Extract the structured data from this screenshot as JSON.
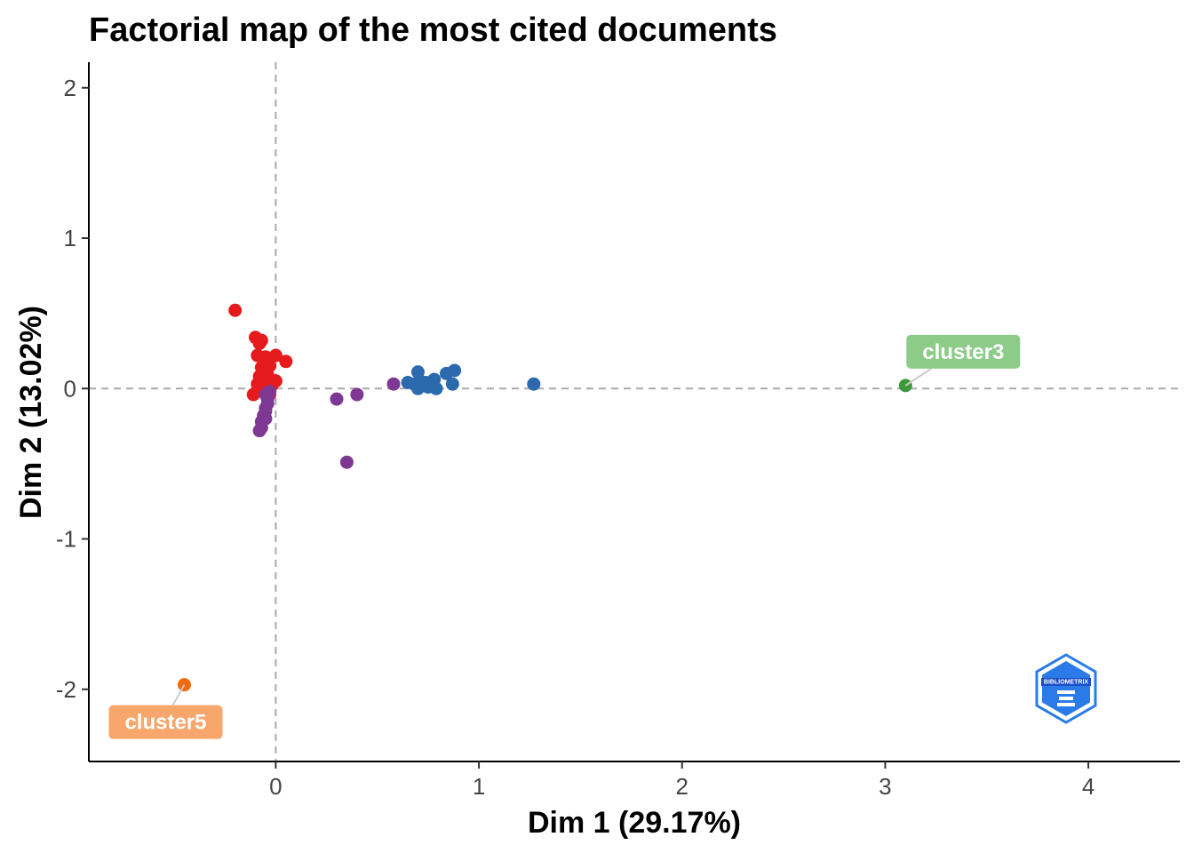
{
  "chart_data": {
    "type": "scatter",
    "title": "Factorial map of the most cited documents",
    "xlabel": "Dim 1 (29.17%)",
    "ylabel": "Dim 2 (13.02%)",
    "xlim": [
      -0.92,
      4.45
    ],
    "ylim": [
      -2.48,
      2.17
    ],
    "x_ticks": [
      0,
      1,
      2,
      3,
      4
    ],
    "x_tick_labels": [
      "0",
      "1",
      "2",
      "3",
      "4"
    ],
    "y_ticks": [
      2,
      1,
      0,
      -1,
      -2
    ],
    "y_tick_labels": [
      "2",
      "1",
      "0",
      "-1",
      "-2"
    ],
    "reference_lines": {
      "x": 0,
      "y": 0,
      "style": "dashed",
      "color": "#aaaaaa"
    },
    "grid": false,
    "series": [
      {
        "color": "#e41a1c",
        "points": [
          {
            "x": -0.2,
            "y": 0.52
          },
          {
            "x": -0.1,
            "y": 0.34
          },
          {
            "x": -0.08,
            "y": 0.3
          },
          {
            "x": -0.07,
            "y": 0.32
          },
          {
            "x": -0.09,
            "y": 0.22
          },
          {
            "x": -0.05,
            "y": 0.21
          },
          {
            "x": -0.07,
            "y": 0.14
          },
          {
            "x": -0.05,
            "y": 0.16
          },
          {
            "x": -0.03,
            "y": 0.15
          },
          {
            "x": 0.0,
            "y": 0.22
          },
          {
            "x": 0.05,
            "y": 0.18
          },
          {
            "x": -0.08,
            "y": 0.08
          },
          {
            "x": -0.06,
            "y": 0.1
          },
          {
            "x": -0.04,
            "y": 0.09
          },
          {
            "x": -0.09,
            "y": 0.03
          },
          {
            "x": -0.06,
            "y": 0.04
          },
          {
            "x": -0.04,
            "y": 0.03
          },
          {
            "x": -0.02,
            "y": 0.02
          },
          {
            "x": 0.0,
            "y": 0.05
          },
          {
            "x": -0.11,
            "y": -0.04
          },
          {
            "x": -0.06,
            "y": -0.02
          },
          {
            "x": -0.03,
            "y": -0.04
          },
          {
            "x": -0.05,
            "y": 0.0
          }
        ]
      },
      {
        "color": "#7e3894",
        "points": [
          {
            "x": -0.08,
            "y": -0.28
          },
          {
            "x": -0.07,
            "y": -0.26
          },
          {
            "x": -0.07,
            "y": -0.22
          },
          {
            "x": -0.06,
            "y": -0.18
          },
          {
            "x": -0.05,
            "y": -0.2
          },
          {
            "x": -0.05,
            "y": -0.15
          },
          {
            "x": -0.05,
            "y": -0.13
          },
          {
            "x": -0.04,
            "y": -0.1
          },
          {
            "x": -0.04,
            "y": -0.07
          },
          {
            "x": -0.05,
            "y": -0.04
          },
          {
            "x": -0.03,
            "y": -0.02
          },
          {
            "x": 0.3,
            "y": -0.07
          },
          {
            "x": 0.4,
            "y": -0.04
          },
          {
            "x": 0.58,
            "y": 0.03
          },
          {
            "x": 0.35,
            "y": -0.49
          }
        ]
      },
      {
        "color": "#2b6aad",
        "points": [
          {
            "x": 0.65,
            "y": 0.04
          },
          {
            "x": 0.68,
            "y": 0.03
          },
          {
            "x": 0.7,
            "y": 0.11
          },
          {
            "x": 0.71,
            "y": 0.05
          },
          {
            "x": 0.7,
            "y": 0.0
          },
          {
            "x": 0.72,
            "y": 0.03
          },
          {
            "x": 0.74,
            "y": 0.04
          },
          {
            "x": 0.75,
            "y": 0.01
          },
          {
            "x": 0.77,
            "y": 0.04
          },
          {
            "x": 0.78,
            "y": 0.06
          },
          {
            "x": 0.79,
            "y": 0.0
          },
          {
            "x": 0.84,
            "y": 0.1
          },
          {
            "x": 0.87,
            "y": 0.03
          },
          {
            "x": 0.88,
            "y": 0.12
          },
          {
            "x": 1.27,
            "y": 0.03
          }
        ]
      },
      {
        "name": "cluster3",
        "color": "#3a9a3a",
        "label_bg": "#8ccb88",
        "points": [
          {
            "x": 3.1,
            "y": 0.02
          }
        ]
      },
      {
        "name": "cluster5",
        "color": "#f06a0a",
        "label_bg": "#f8a66b",
        "points": [
          {
            "x": -0.45,
            "y": -1.97
          }
        ]
      }
    ]
  },
  "logo": {
    "icon": "bibliometrix-logo-icon",
    "text": "BIBLIOMETRIX",
    "color": "#2a7be8"
  }
}
